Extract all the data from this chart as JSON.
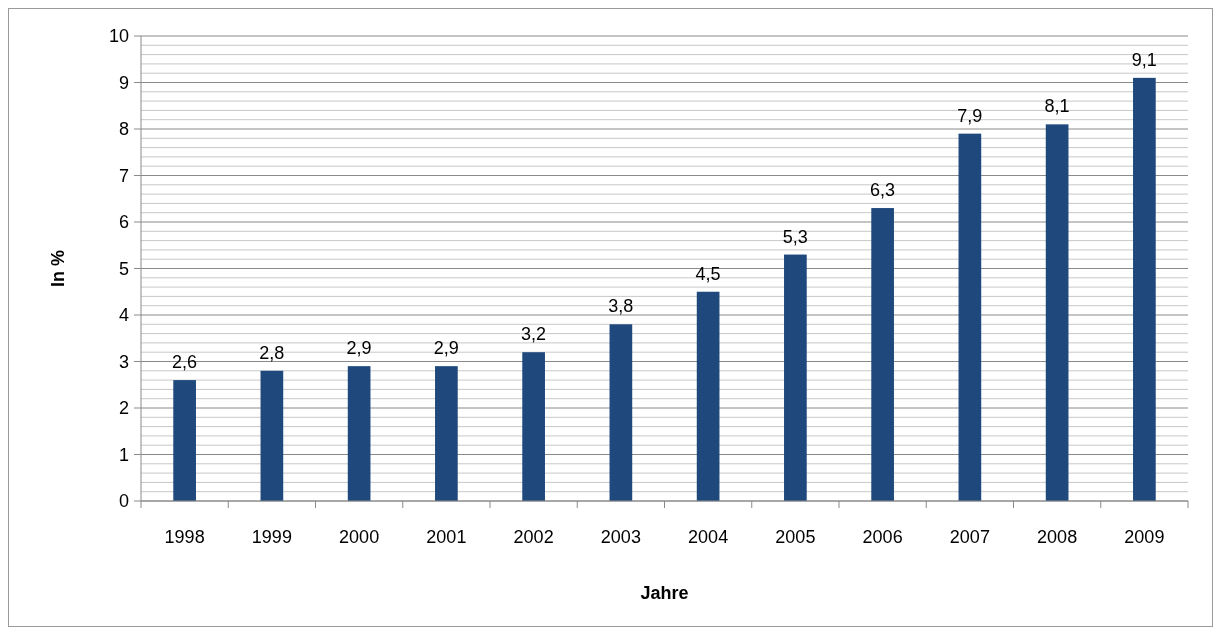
{
  "chart_data": {
    "type": "bar",
    "xlabel": "Jahre",
    "ylabel": "In %",
    "categories": [
      "1998",
      "1999",
      "2000",
      "2001",
      "2002",
      "2003",
      "2004",
      "2005",
      "2006",
      "2007",
      "2008",
      "2009"
    ],
    "values": [
      2.6,
      2.8,
      2.9,
      2.9,
      3.2,
      3.8,
      4.5,
      5.3,
      6.3,
      7.9,
      8.1,
      9.1
    ],
    "value_labels": [
      "2,6",
      "2,8",
      "2,9",
      "2,9",
      "3,2",
      "3,8",
      "4,5",
      "5,3",
      "6,3",
      "7,9",
      "8,1",
      "9,1"
    ],
    "color": "#1f497d",
    "ylim": [
      0,
      10
    ],
    "yticks": [
      0,
      {
        "value": 0.2,
        "label": null
      },
      {
        "value": 0.4,
        "label": null
      },
      {
        "value": 0.6,
        "label": null
      },
      {
        "value": 0.8,
        "label": null
      },
      1,
      {
        "value": 1.2,
        "label": null
      },
      {
        "value": 1.4,
        "label": null
      },
      {
        "value": 1.6,
        "label": null
      },
      {
        "value": 1.8,
        "label": null
      },
      2,
      {
        "value": 2.2,
        "label": null
      },
      {
        "value": 2.4,
        "label": null
      },
      {
        "value": 2.6,
        "label": null
      },
      {
        "value": 2.8,
        "label": null
      },
      3,
      {
        "value": 3.2,
        "label": null
      },
      {
        "value": 3.4,
        "label": null
      },
      {
        "value": 3.6,
        "label": null
      },
      {
        "value": 3.8,
        "label": null
      },
      4,
      {
        "value": 4.2,
        "label": null
      },
      {
        "value": 4.4,
        "label": null
      },
      {
        "value": 4.6,
        "label": null
      },
      {
        "value": 4.8,
        "label": null
      },
      5,
      {
        "value": 5.2,
        "label": null
      },
      {
        "value": 5.4,
        "label": null
      },
      {
        "value": 5.6,
        "label": null
      },
      {
        "value": 5.8,
        "label": null
      },
      6,
      {
        "value": 6.2,
        "label": null
      },
      {
        "value": 6.4,
        "label": null
      },
      {
        "value": 6.6,
        "label": null
      },
      {
        "value": 6.8,
        "label": null
      },
      7,
      {
        "value": 7.2,
        "label": null
      },
      {
        "value": 7.4,
        "label": null
      },
      {
        "value": 7.6,
        "label": null
      },
      {
        "value": 7.8,
        "label": null
      },
      8,
      {
        "value": 8.2,
        "label": null
      },
      {
        "value": 8.4,
        "label": null
      },
      {
        "value": 8.6,
        "label": null
      },
      {
        "value": 8.8,
        "label": null
      },
      9,
      {
        "value": 9.2,
        "label": null
      },
      {
        "value": 9.4,
        "label": null
      },
      {
        "value": 9.6,
        "label": null
      },
      {
        "value": 9.8,
        "label": null
      },
      10
    ],
    "grid": "y"
  }
}
